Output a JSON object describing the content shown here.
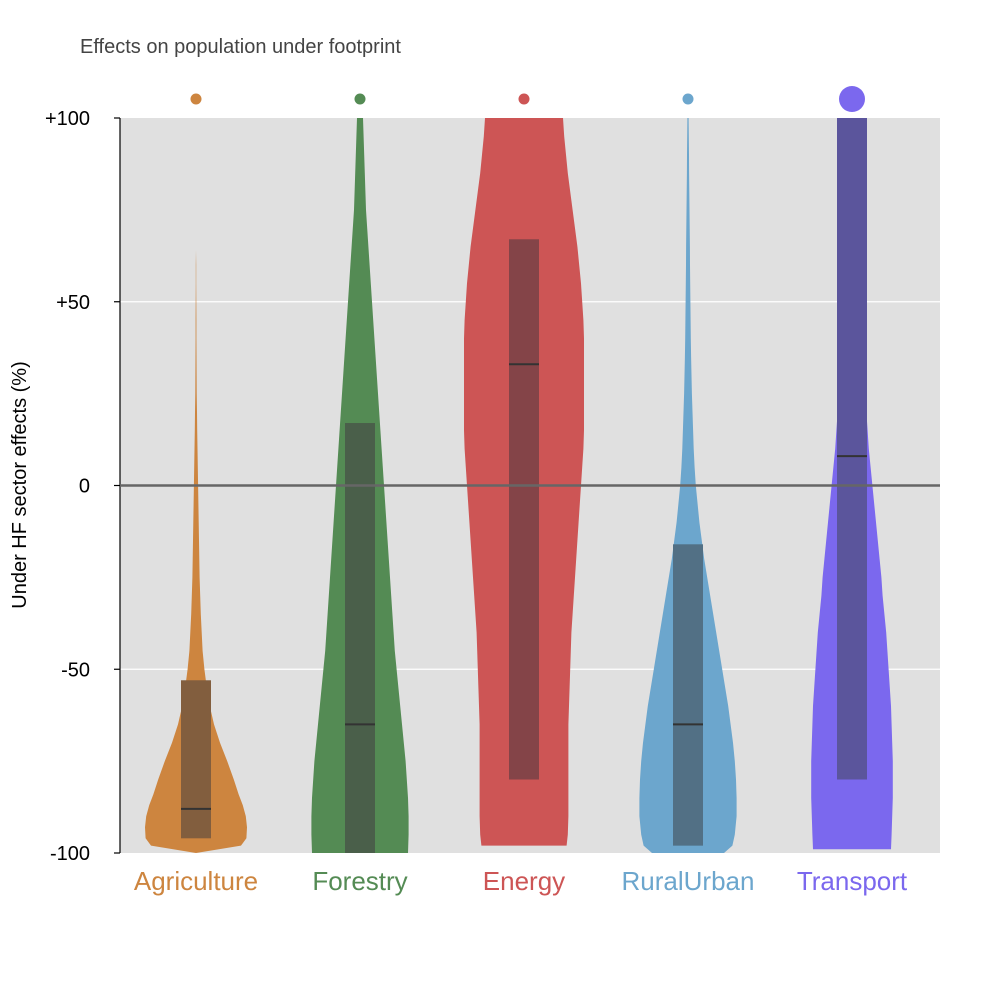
{
  "chart_data": {
    "type": "violin",
    "title": "Effects on population under footprint",
    "xlabel": "",
    "ylabel": "Under HF sector effects (%)",
    "ylim": [
      -100,
      100
    ],
    "yticks": [
      {
        "value": 100,
        "label": "+100"
      },
      {
        "value": 50,
        "label": "+50"
      },
      {
        "value": 0,
        "label": "0"
      },
      {
        "value": -50,
        "label": "-50"
      },
      {
        "value": -100,
        "label": "-100"
      }
    ],
    "grid": true,
    "zero_line": true,
    "background": "#e0e0e0",
    "categories": [
      "Agriculture",
      "Forestry",
      "Energy",
      "RuralUrban",
      "Transport"
    ],
    "series": [
      {
        "category": "Agriculture",
        "color": "#cd853f",
        "box_color": "#825e3e",
        "q1": -96,
        "median": -88,
        "q3": -53,
        "top_marker": {
          "y": 105,
          "size": "small"
        },
        "density": [
          [
            -100,
            0
          ],
          [
            -98,
            0.75
          ],
          [
            -96,
            0.84
          ],
          [
            -93,
            0.85
          ],
          [
            -90,
            0.83
          ],
          [
            -87,
            0.78
          ],
          [
            -84,
            0.71
          ],
          [
            -80,
            0.63
          ],
          [
            -75,
            0.52
          ],
          [
            -70,
            0.4
          ],
          [
            -65,
            0.3
          ],
          [
            -60,
            0.23
          ],
          [
            -55,
            0.18
          ],
          [
            -50,
            0.14
          ],
          [
            -45,
            0.11
          ],
          [
            -40,
            0.095
          ],
          [
            -35,
            0.08
          ],
          [
            -30,
            0.07
          ],
          [
            -25,
            0.06
          ],
          [
            -20,
            0.055
          ],
          [
            -15,
            0.05
          ],
          [
            -10,
            0.045
          ],
          [
            -5,
            0.04
          ],
          [
            0,
            0.035
          ],
          [
            5,
            0.03
          ],
          [
            10,
            0.025
          ],
          [
            15,
            0.02
          ],
          [
            20,
            0.016
          ],
          [
            25,
            0.012
          ],
          [
            30,
            0.01
          ],
          [
            35,
            0.008
          ],
          [
            40,
            0.007
          ],
          [
            45,
            0.006
          ],
          [
            50,
            0.005
          ],
          [
            55,
            0.004
          ],
          [
            60,
            0.003
          ],
          [
            64,
            0
          ]
        ]
      },
      {
        "category": "Forestry",
        "color": "#548b54",
        "box_color": "#4a5f4a",
        "q1": -100,
        "median": -65,
        "q3": 17,
        "top_marker": {
          "y": 105,
          "size": "small"
        },
        "density": [
          [
            -100,
            0.8
          ],
          [
            -95,
            0.81
          ],
          [
            -90,
            0.81
          ],
          [
            -85,
            0.8
          ],
          [
            -80,
            0.78
          ],
          [
            -75,
            0.76
          ],
          [
            -70,
            0.73
          ],
          [
            -65,
            0.7
          ],
          [
            -60,
            0.67
          ],
          [
            -55,
            0.64
          ],
          [
            -50,
            0.61
          ],
          [
            -45,
            0.58
          ],
          [
            -40,
            0.56
          ],
          [
            -35,
            0.54
          ],
          [
            -30,
            0.52
          ],
          [
            -25,
            0.5
          ],
          [
            -20,
            0.48
          ],
          [
            -15,
            0.46
          ],
          [
            -10,
            0.44
          ],
          [
            -5,
            0.42
          ],
          [
            0,
            0.4
          ],
          [
            5,
            0.38
          ],
          [
            10,
            0.36
          ],
          [
            15,
            0.34
          ],
          [
            20,
            0.32
          ],
          [
            25,
            0.3
          ],
          [
            30,
            0.28
          ],
          [
            35,
            0.26
          ],
          [
            40,
            0.24
          ],
          [
            45,
            0.22
          ],
          [
            50,
            0.2
          ],
          [
            55,
            0.18
          ],
          [
            60,
            0.16
          ],
          [
            65,
            0.14
          ],
          [
            70,
            0.12
          ],
          [
            75,
            0.1
          ],
          [
            80,
            0.09
          ],
          [
            85,
            0.08
          ],
          [
            90,
            0.07
          ],
          [
            95,
            0.06
          ],
          [
            100,
            0.05
          ]
        ]
      },
      {
        "category": "Energy",
        "color": "#cd5555",
        "box_color": "#844448",
        "q1": -80,
        "median": 33,
        "q3": 67,
        "top_marker": {
          "y": 105,
          "size": "small"
        },
        "density": [
          [
            -98,
            0.71
          ],
          [
            -95,
            0.73
          ],
          [
            -90,
            0.74
          ],
          [
            -85,
            0.74
          ],
          [
            -80,
            0.74
          ],
          [
            -75,
            0.74
          ],
          [
            -70,
            0.74
          ],
          [
            -65,
            0.74
          ],
          [
            -60,
            0.75
          ],
          [
            -55,
            0.76
          ],
          [
            -50,
            0.77
          ],
          [
            -45,
            0.78
          ],
          [
            -40,
            0.79
          ],
          [
            -35,
            0.81
          ],
          [
            -30,
            0.83
          ],
          [
            -25,
            0.85
          ],
          [
            -20,
            0.87
          ],
          [
            -15,
            0.89
          ],
          [
            -10,
            0.91
          ],
          [
            -5,
            0.93
          ],
          [
            0,
            0.95
          ],
          [
            5,
            0.97
          ],
          [
            10,
            0.99
          ],
          [
            15,
            1.0
          ],
          [
            20,
            1.0
          ],
          [
            25,
            1.0
          ],
          [
            30,
            1.0
          ],
          [
            35,
            1.0
          ],
          [
            40,
            1.0
          ],
          [
            45,
            0.99
          ],
          [
            50,
            0.97
          ],
          [
            55,
            0.95
          ],
          [
            60,
            0.92
          ],
          [
            65,
            0.89
          ],
          [
            70,
            0.85
          ],
          [
            75,
            0.81
          ],
          [
            80,
            0.77
          ],
          [
            85,
            0.73
          ],
          [
            90,
            0.7
          ],
          [
            95,
            0.67
          ],
          [
            100,
            0.65
          ]
        ]
      },
      {
        "category": "RuralUrban",
        "color": "#6ca6cd",
        "box_color": "#527085",
        "q1": -98,
        "median": -65,
        "q3": -16,
        "top_marker": {
          "y": 105,
          "size": "small"
        },
        "density": [
          [
            -100,
            0.6
          ],
          [
            -98,
            0.74
          ],
          [
            -95,
            0.78
          ],
          [
            -90,
            0.81
          ],
          [
            -85,
            0.81
          ],
          [
            -80,
            0.8
          ],
          [
            -75,
            0.78
          ],
          [
            -70,
            0.75
          ],
          [
            -65,
            0.71
          ],
          [
            -60,
            0.67
          ],
          [
            -55,
            0.62
          ],
          [
            -50,
            0.57
          ],
          [
            -45,
            0.52
          ],
          [
            -40,
            0.47
          ],
          [
            -35,
            0.42
          ],
          [
            -30,
            0.37
          ],
          [
            -25,
            0.32
          ],
          [
            -20,
            0.27
          ],
          [
            -15,
            0.23
          ],
          [
            -10,
            0.19
          ],
          [
            -5,
            0.16
          ],
          [
            0,
            0.13
          ],
          [
            5,
            0.11
          ],
          [
            10,
            0.095
          ],
          [
            15,
            0.085
          ],
          [
            20,
            0.075
          ],
          [
            25,
            0.065
          ],
          [
            30,
            0.058
          ],
          [
            35,
            0.052
          ],
          [
            40,
            0.047
          ],
          [
            45,
            0.043
          ],
          [
            50,
            0.04
          ],
          [
            55,
            0.037
          ],
          [
            60,
            0.034
          ],
          [
            65,
            0.031
          ],
          [
            70,
            0.028
          ],
          [
            75,
            0.025
          ],
          [
            80,
            0.022
          ],
          [
            85,
            0.019
          ],
          [
            90,
            0.016
          ],
          [
            95,
            0.013
          ],
          [
            100,
            0.01
          ]
        ]
      },
      {
        "category": "Transport",
        "color": "#7b68ee",
        "box_color": "#5b559c",
        "q1": -80,
        "median": 8,
        "q3": 100,
        "top_marker": {
          "y": 105,
          "size": "large"
        },
        "density": [
          [
            -99,
            0.65
          ],
          [
            -95,
            0.66
          ],
          [
            -90,
            0.67
          ],
          [
            -85,
            0.68
          ],
          [
            -80,
            0.68
          ],
          [
            -75,
            0.68
          ],
          [
            -70,
            0.67
          ],
          [
            -65,
            0.66
          ],
          [
            -60,
            0.65
          ],
          [
            -55,
            0.63
          ],
          [
            -50,
            0.61
          ],
          [
            -45,
            0.59
          ],
          [
            -40,
            0.57
          ],
          [
            -35,
            0.54
          ],
          [
            -30,
            0.51
          ],
          [
            -25,
            0.49
          ],
          [
            -20,
            0.46
          ],
          [
            -15,
            0.43
          ],
          [
            -10,
            0.4
          ],
          [
            -5,
            0.37
          ],
          [
            0,
            0.34
          ],
          [
            5,
            0.31
          ],
          [
            10,
            0.28
          ],
          [
            15,
            0.26
          ],
          [
            20,
            0.24
          ],
          [
            25,
            0.22
          ],
          [
            30,
            0.2
          ],
          [
            35,
            0.19
          ],
          [
            40,
            0.18
          ],
          [
            45,
            0.17
          ],
          [
            50,
            0.16
          ],
          [
            55,
            0.15
          ],
          [
            60,
            0.14
          ],
          [
            65,
            0.13
          ],
          [
            70,
            0.12
          ],
          [
            75,
            0.115
          ],
          [
            80,
            0.11
          ],
          [
            85,
            0.105
          ],
          [
            90,
            0.1
          ],
          [
            95,
            0.095
          ],
          [
            100,
            0.09
          ]
        ]
      }
    ]
  }
}
